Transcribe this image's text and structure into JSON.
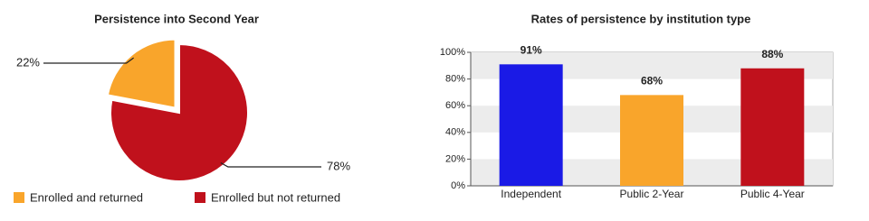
{
  "chart_data": [
    {
      "type": "pie",
      "title": "Persistence into Second Year",
      "categories": [
        "Enrolled and returned",
        "Enrolled but not returned"
      ],
      "values": [
        22,
        78
      ],
      "value_labels": [
        "22%",
        "78%"
      ],
      "colors": [
        "#f9a52b",
        "#c0111c"
      ]
    },
    {
      "type": "bar",
      "title": "Rates of persistence by institution type",
      "categories": [
        "Independent",
        "Public 2-Year",
        "Public 4-Year"
      ],
      "values": [
        91,
        68,
        88
      ],
      "value_labels": [
        "91%",
        "68%",
        "88%"
      ],
      "colors": [
        "#1a1ae6",
        "#f9a52b",
        "#c0111c"
      ],
      "ylim": [
        0,
        100
      ],
      "yticks": [
        {
          "value": 0,
          "label": "0%"
        },
        {
          "value": 20,
          "label": "20%"
        },
        {
          "value": 40,
          "label": "40%"
        },
        {
          "value": 60,
          "label": "60%"
        },
        {
          "value": 80,
          "label": "80%"
        },
        {
          "value": 100,
          "label": "100%"
        }
      ],
      "grid": true
    }
  ]
}
